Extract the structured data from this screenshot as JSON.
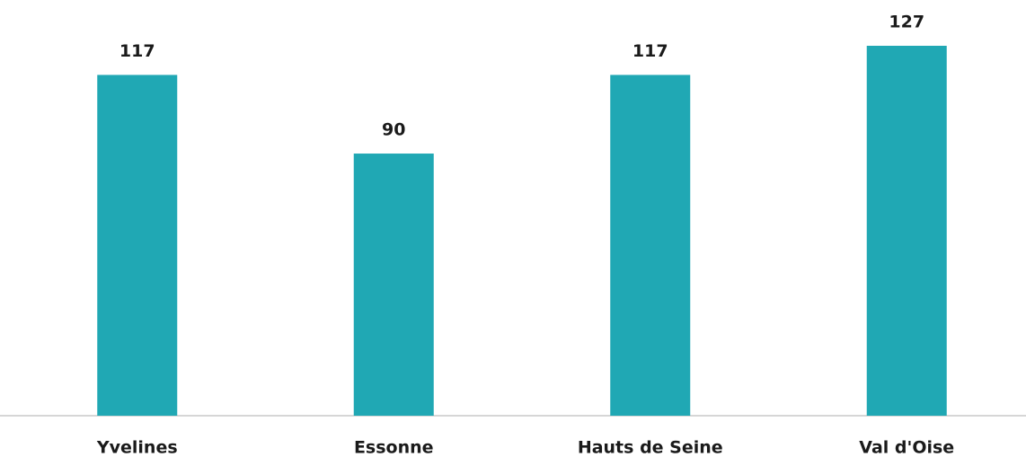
{
  "chart_data": {
    "type": "bar",
    "categories": [
      "Yvelines",
      "Essonne",
      "Hauts de Seine",
      "Val d'Oise"
    ],
    "values": [
      117,
      90,
      117,
      127
    ],
    "color": "#20a8b4"
  }
}
